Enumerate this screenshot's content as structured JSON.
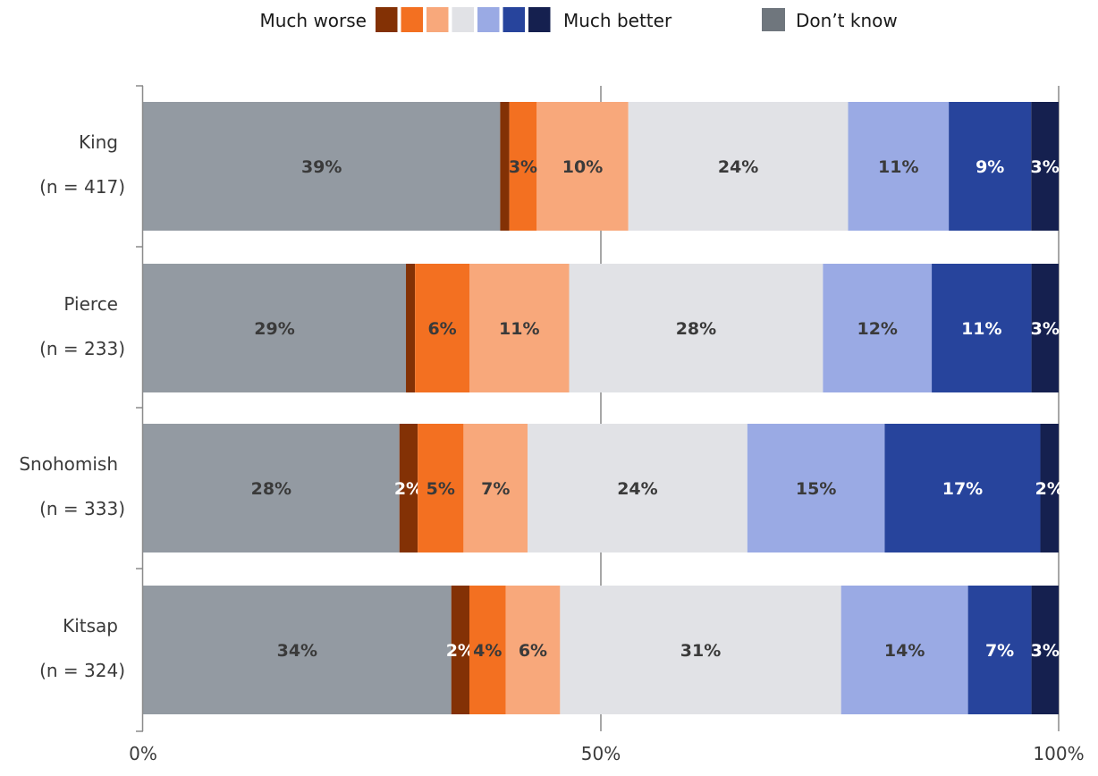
{
  "legend": {
    "worse_label": "Much worse",
    "better_label": "Much better",
    "dontknow_label": "Don’t know"
  },
  "chart_data": {
    "type": "bar",
    "orientation": "horizontal",
    "stacked": true,
    "title": "",
    "xlabel": "",
    "ylabel": "",
    "xlim": [
      0,
      100
    ],
    "x_ticks": [
      "0%",
      "50%",
      "100%"
    ],
    "categories": [
      {
        "name": "King",
        "n": "(n = 417)"
      },
      {
        "name": "Pierce",
        "n": "(n = 233)"
      },
      {
        "name": "Snohomish",
        "n": "(n = 333)"
      },
      {
        "name": "Kitsap",
        "n": "(n = 324)"
      }
    ],
    "series": [
      {
        "key": "dont-know",
        "color": "#939aa2",
        "text_color": "#3a3a3a",
        "values": [
          39,
          29,
          28,
          34
        ],
        "labels": [
          "39%",
          "29%",
          "28%",
          "34%"
        ]
      },
      {
        "key": "much-worse",
        "color": "#833105",
        "text_color": "#ffffff",
        "values": [
          1,
          1,
          2,
          2
        ],
        "labels": [
          "",
          "",
          "2%",
          "2%"
        ]
      },
      {
        "key": "worse",
        "color": "#f37021",
        "text_color": "#3a3a3a",
        "values": [
          3,
          6,
          5,
          4
        ],
        "labels": [
          "3%",
          "6%",
          "5%",
          "4%"
        ]
      },
      {
        "key": "slightly-worse",
        "color": "#f8a87b",
        "text_color": "#3a3a3a",
        "values": [
          10,
          11,
          7,
          6
        ],
        "labels": [
          "10%",
          "11%",
          "7%",
          "6%"
        ]
      },
      {
        "key": "no-change",
        "color": "#e1e2e6",
        "text_color": "#3a3a3a",
        "values": [
          24,
          28,
          24,
          31
        ],
        "labels": [
          "24%",
          "28%",
          "24%",
          "31%"
        ]
      },
      {
        "key": "slightly-better",
        "color": "#9aaae4",
        "text_color": "#3a3a3a",
        "values": [
          11,
          12,
          15,
          14
        ],
        "labels": [
          "11%",
          "12%",
          "15%",
          "14%"
        ]
      },
      {
        "key": "better",
        "color": "#27449c",
        "text_color": "#ffffff",
        "values": [
          9,
          11,
          17,
          7
        ],
        "labels": [
          "9%",
          "11%",
          "17%",
          "7%"
        ]
      },
      {
        "key": "much-better",
        "color": "#15204f",
        "text_color": "#ffffff",
        "values": [
          3,
          3,
          2,
          3
        ],
        "labels": [
          "3%",
          "3%",
          "2%",
          "3%"
        ]
      }
    ],
    "legend_swatches": [
      "#833105",
      "#f37021",
      "#f8a87b",
      "#e1e2e6",
      "#9aaae4",
      "#27449c",
      "#15204f"
    ],
    "dontknow_swatch": "#6f767d",
    "gridlines": true,
    "legend_position": "top"
  }
}
